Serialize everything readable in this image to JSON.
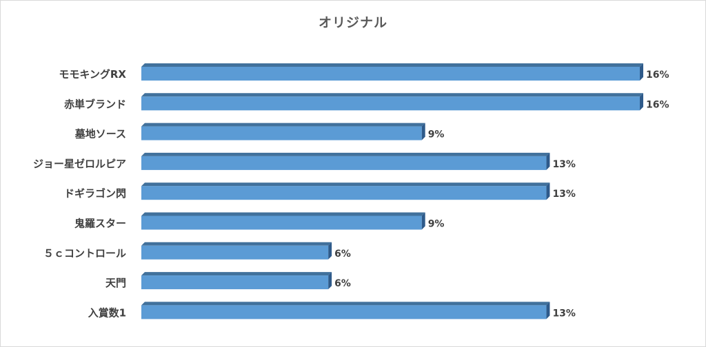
{
  "chart_data": {
    "type": "bar",
    "orientation": "horizontal",
    "style": "3d",
    "title": "オリジナル",
    "categories": [
      "モモキングRX",
      "赤単ブランド",
      "墓地ソース",
      "ジョー星ゼロルピア",
      "ドギラゴン閃",
      "鬼羅スター",
      "５ｃコントロール",
      "天門",
      "入賞数1"
    ],
    "values": [
      16,
      16,
      9,
      13,
      13,
      9,
      6,
      6,
      13
    ],
    "data_labels": [
      "16%",
      "16%",
      "9%",
      "13%",
      "13%",
      "9%",
      "6%",
      "6%",
      "13%"
    ],
    "unit": "%",
    "xlim": [
      0,
      16
    ],
    "xlabel": "",
    "ylabel": "",
    "grid": false,
    "legend": "none",
    "colors": {
      "bar_front": "#5b9bd5",
      "bar_top": "#41719c",
      "bar_side": "#2e5a8a",
      "label_text": "#404040",
      "title_text": "#595959"
    }
  }
}
